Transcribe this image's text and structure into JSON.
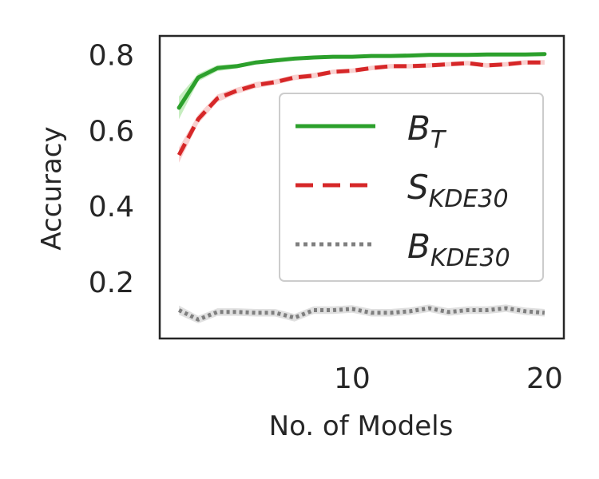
{
  "chart_data": {
    "type": "line",
    "xlabel": "No. of Models",
    "ylabel": "Accuracy",
    "xlim": [
      0,
      21
    ],
    "ylim": [
      0.05,
      0.85
    ],
    "x_ticks": [
      10,
      20
    ],
    "x_tick_labels": [
      "10",
      "20"
    ],
    "y_ticks": [
      0.2,
      0.4,
      0.6,
      0.8
    ],
    "y_tick_labels": [
      "0.2",
      "0.4",
      "0.6",
      "0.8"
    ],
    "grid": false,
    "legend_position": "center-right",
    "x": [
      1,
      2,
      3,
      4,
      5,
      6,
      7,
      8,
      9,
      10,
      11,
      12,
      13,
      14,
      15,
      16,
      17,
      18,
      19,
      20
    ],
    "series": [
      {
        "name": "B",
        "subscript": "T",
        "color": "#2ca02c",
        "band_color": "#98df8a",
        "linestyle": "solid",
        "values": [
          0.66,
          0.74,
          0.765,
          0.77,
          0.78,
          0.785,
          0.79,
          0.793,
          0.795,
          0.795,
          0.797,
          0.797,
          0.798,
          0.8,
          0.8,
          0.8,
          0.801,
          0.801,
          0.801,
          0.802
        ],
        "band": [
          0.03,
          0.01,
          0.008,
          0.006,
          0.005,
          0.005,
          0.004,
          0.004,
          0.004,
          0.004,
          0.004,
          0.004,
          0.004,
          0.004,
          0.004,
          0.004,
          0.004,
          0.004,
          0.004,
          0.004
        ]
      },
      {
        "name": "S",
        "subscript": "KDE30",
        "color": "#d62728",
        "band_color": "#f4a9a8",
        "linestyle": "dashed",
        "values": [
          0.535,
          0.63,
          0.685,
          0.705,
          0.72,
          0.728,
          0.74,
          0.745,
          0.755,
          0.758,
          0.765,
          0.77,
          0.77,
          0.772,
          0.775,
          0.778,
          0.772,
          0.775,
          0.78,
          0.78
        ],
        "band": [
          0.02,
          0.012,
          0.01,
          0.008,
          0.008,
          0.007,
          0.007,
          0.007,
          0.006,
          0.006,
          0.006,
          0.006,
          0.006,
          0.006,
          0.006,
          0.006,
          0.006,
          0.006,
          0.006,
          0.006
        ]
      },
      {
        "name": "B",
        "subscript": "KDE30",
        "color": "#7f7f7f",
        "band_color": "#c7c7c7",
        "linestyle": "dotted",
        "values": [
          0.125,
          0.1,
          0.12,
          0.12,
          0.118,
          0.118,
          0.105,
          0.125,
          0.125,
          0.128,
          0.118,
          0.118,
          0.122,
          0.13,
          0.12,
          0.125,
          0.125,
          0.13,
          0.122,
          0.118
        ],
        "band": [
          0.012,
          0.01,
          0.01,
          0.01,
          0.01,
          0.01,
          0.01,
          0.01,
          0.01,
          0.01,
          0.01,
          0.01,
          0.01,
          0.01,
          0.01,
          0.01,
          0.01,
          0.01,
          0.01,
          0.01
        ]
      }
    ]
  }
}
